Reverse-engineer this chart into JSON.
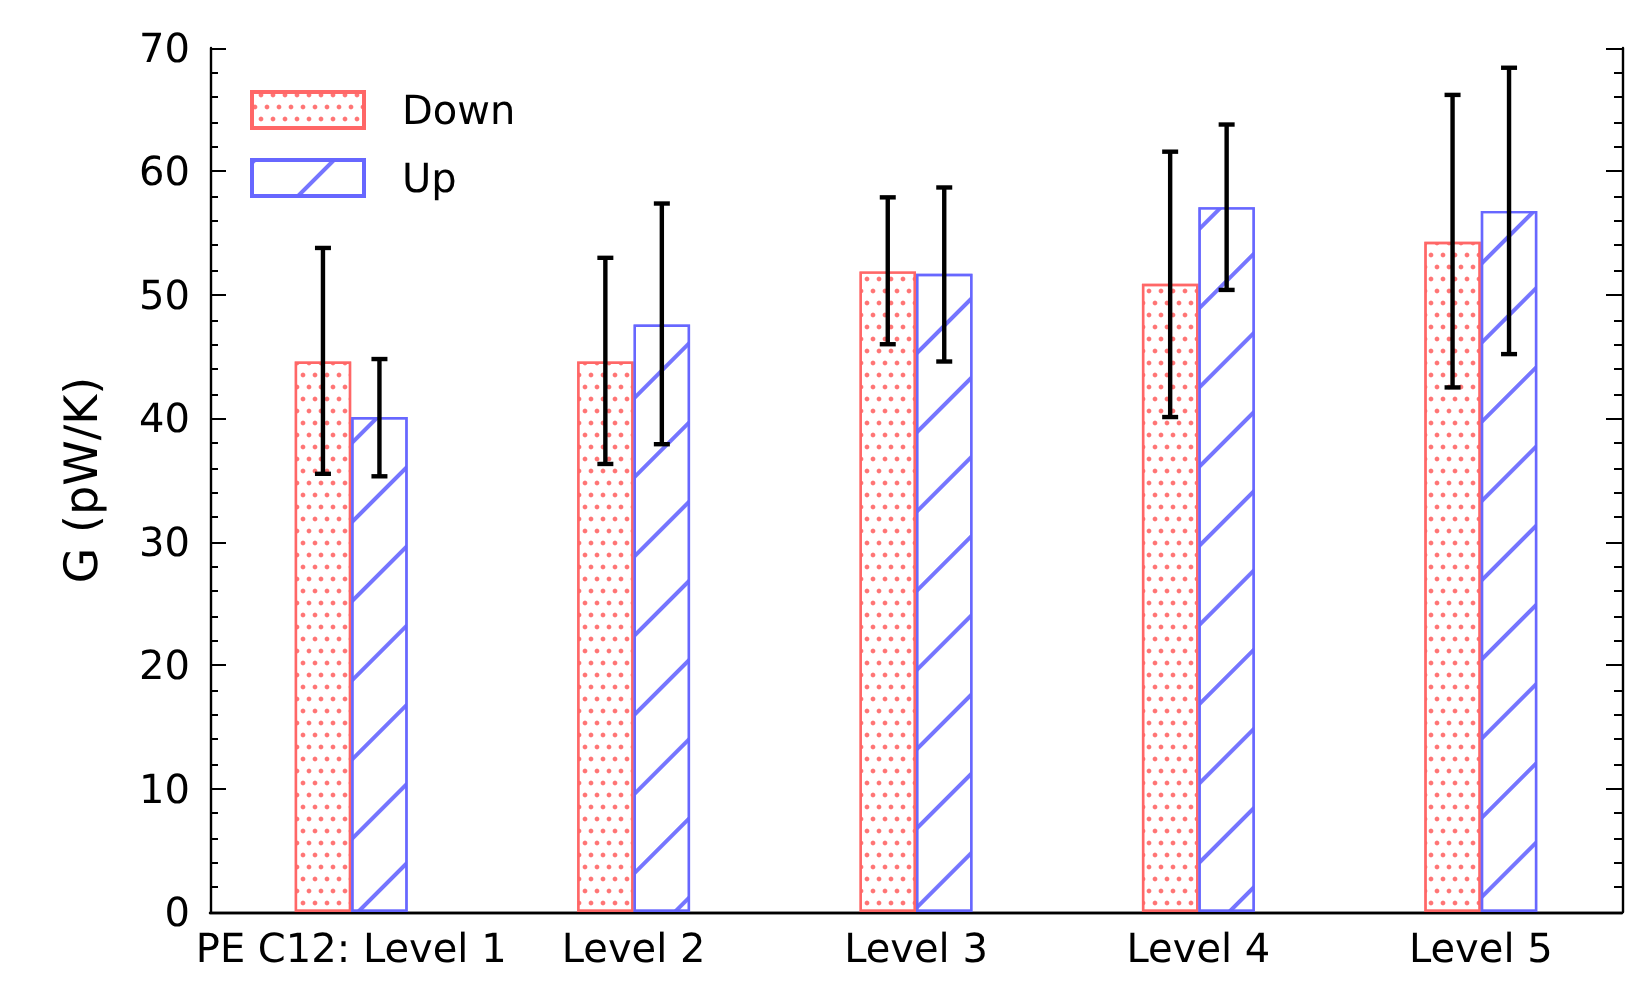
{
  "chart_data": {
    "type": "bar",
    "ylabel": "G (pW/K)",
    "categories": [
      "PE C12: Level 1",
      "Level 2",
      "Level 3",
      "Level 4",
      "Level 5"
    ],
    "series": [
      {
        "name": "Down",
        "color": "#ff6666",
        "values": [
          44.6,
          44.6,
          51.9,
          50.9,
          54.3
        ],
        "errors": [
          [
            35.5,
            53.8
          ],
          [
            36.3,
            53.0
          ],
          [
            46.0,
            57.9
          ],
          [
            40.1,
            61.6
          ],
          [
            42.5,
            66.2
          ]
        ]
      },
      {
        "name": "Up",
        "color": "#6666ff",
        "values": [
          40.1,
          47.6,
          51.7,
          57.1,
          56.8
        ],
        "errors": [
          [
            35.3,
            44.8
          ],
          [
            37.9,
            57.4
          ],
          [
            44.6,
            58.7
          ],
          [
            50.4,
            63.8
          ],
          [
            45.2,
            68.4
          ]
        ]
      }
    ],
    "ylim": [
      0,
      70
    ],
    "yticks": [
      0,
      10,
      20,
      30,
      40,
      50,
      60,
      70
    ],
    "grid": false,
    "legend": "top left"
  }
}
